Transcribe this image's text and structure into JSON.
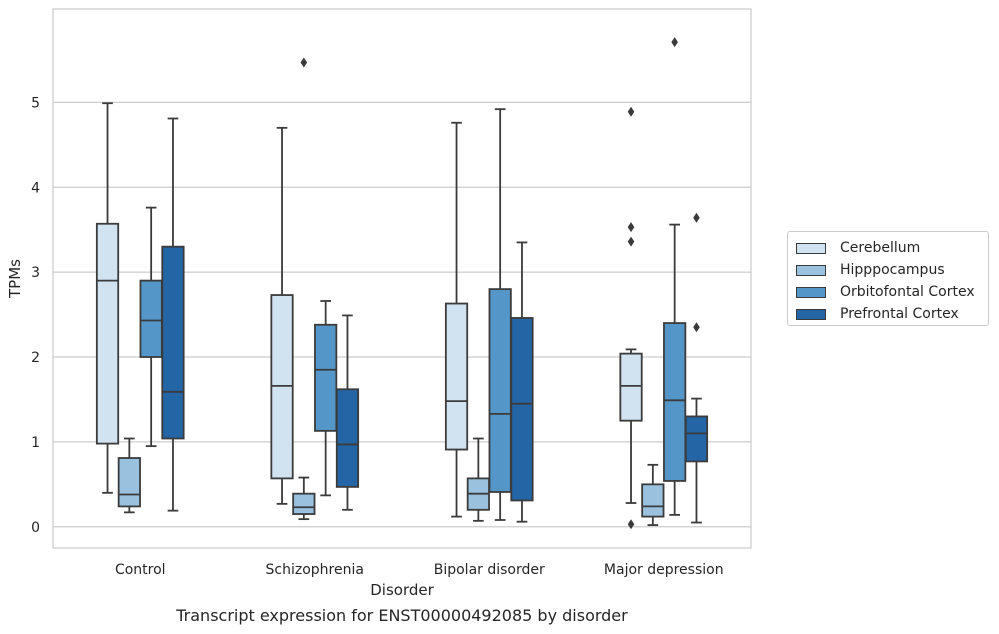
{
  "caption": "Transcript expression for ENST00000492085 by disorder",
  "chart_data": {
    "type": "box",
    "title": "",
    "xlabel": "Disorder",
    "ylabel": "TPMs",
    "ylim": [
      -0.25,
      6.1
    ],
    "yticks": [
      0,
      1,
      2,
      3,
      4,
      5
    ],
    "grid": true,
    "legend_position": "right",
    "categories": [
      "Control",
      "Schizophrenia",
      "Bipolar disorder",
      "Major depression"
    ],
    "series": [
      {
        "name": "Cerebellum",
        "color": "#d1e2f1",
        "boxes": [
          {
            "whislo": 0.4,
            "q1": 0.98,
            "med": 2.9,
            "q3": 3.57,
            "whishi": 4.99,
            "fliers": []
          },
          {
            "whislo": 0.27,
            "q1": 0.57,
            "med": 1.66,
            "q3": 2.73,
            "whishi": 4.7,
            "fliers": []
          },
          {
            "whislo": 0.12,
            "q1": 0.91,
            "med": 1.48,
            "q3": 2.63,
            "whishi": 4.76,
            "fliers": []
          },
          {
            "whislo": 0.28,
            "q1": 1.25,
            "med": 1.66,
            "q3": 2.04,
            "whishi": 2.09,
            "fliers": [
              0.03,
              3.36,
              3.53,
              4.89
            ]
          }
        ]
      },
      {
        "name": "Hipppocampus",
        "color": "#9ac2de",
        "boxes": [
          {
            "whislo": 0.17,
            "q1": 0.24,
            "med": 0.38,
            "q3": 0.81,
            "whishi": 1.04,
            "fliers": []
          },
          {
            "whislo": 0.09,
            "q1": 0.15,
            "med": 0.23,
            "q3": 0.39,
            "whishi": 0.58,
            "fliers": [
              5.47
            ]
          },
          {
            "whislo": 0.07,
            "q1": 0.2,
            "med": 0.39,
            "q3": 0.57,
            "whishi": 1.04,
            "fliers": []
          },
          {
            "whislo": 0.02,
            "q1": 0.12,
            "med": 0.24,
            "q3": 0.5,
            "whishi": 0.73,
            "fliers": []
          }
        ]
      },
      {
        "name": "Orbitofontal Cortex",
        "color": "#5496c8",
        "boxes": [
          {
            "whislo": 0.95,
            "q1": 2.0,
            "med": 2.43,
            "q3": 2.9,
            "whishi": 3.76,
            "fliers": []
          },
          {
            "whislo": 0.37,
            "q1": 1.13,
            "med": 1.85,
            "q3": 2.38,
            "whishi": 2.66,
            "fliers": []
          },
          {
            "whislo": 0.08,
            "q1": 0.41,
            "med": 1.33,
            "q3": 2.8,
            "whishi": 4.92,
            "fliers": []
          },
          {
            "whislo": 0.14,
            "q1": 0.54,
            "med": 1.49,
            "q3": 2.4,
            "whishi": 3.56,
            "fliers": [
              5.71
            ]
          }
        ]
      },
      {
        "name": "Prefrontal Cortex",
        "color": "#2465a5",
        "boxes": [
          {
            "whislo": 0.19,
            "q1": 1.04,
            "med": 1.59,
            "q3": 3.3,
            "whishi": 4.81,
            "fliers": []
          },
          {
            "whislo": 0.2,
            "q1": 0.47,
            "med": 0.97,
            "q3": 1.62,
            "whishi": 2.49,
            "fliers": []
          },
          {
            "whislo": 0.06,
            "q1": 0.31,
            "med": 1.45,
            "q3": 2.46,
            "whishi": 3.35,
            "fliers": []
          },
          {
            "whislo": 0.05,
            "q1": 0.77,
            "med": 1.1,
            "q3": 1.3,
            "whishi": 1.51,
            "fliers": [
              2.35,
              3.64
            ]
          }
        ]
      }
    ]
  }
}
